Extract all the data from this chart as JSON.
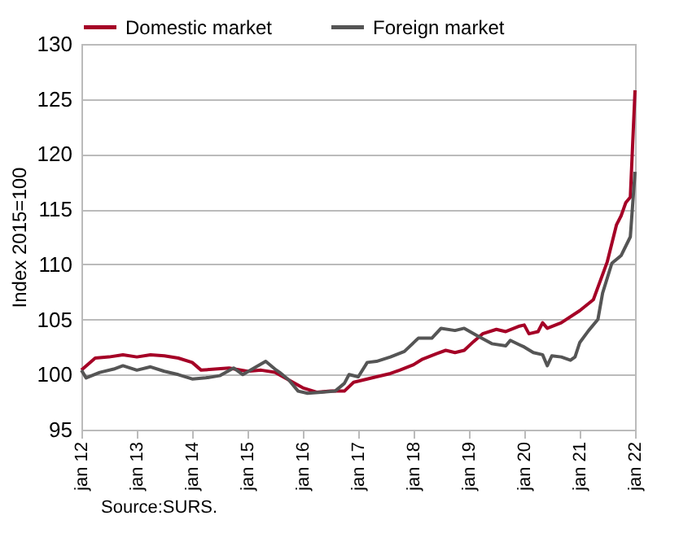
{
  "chart_data": {
    "type": "line",
    "ylabel": "Index 2015=100",
    "annotations": [
      "Source:SURS."
    ],
    "xlim": [
      "2012-01",
      "2022-01"
    ],
    "ylim": [
      95,
      130
    ],
    "yticks": [
      95,
      100,
      105,
      110,
      115,
      120,
      125,
      130
    ],
    "xticks": [
      {
        "value": "2012-01",
        "label": "jan 12"
      },
      {
        "value": "2013-01",
        "label": "jan 13"
      },
      {
        "value": "2014-01",
        "label": "jan 14"
      },
      {
        "value": "2015-01",
        "label": "jan 15"
      },
      {
        "value": "2016-01",
        "label": "jan 16"
      },
      {
        "value": "2017-01",
        "label": "jan 17"
      },
      {
        "value": "2018-01",
        "label": "jan 18"
      },
      {
        "value": "2019-01",
        "label": "jan 19"
      },
      {
        "value": "2020-01",
        "label": "jan 20"
      },
      {
        "value": "2021-01",
        "label": "jan 21"
      },
      {
        "value": "2022-01",
        "label": "jan 22"
      }
    ],
    "grid": "y",
    "legend": "top left",
    "series": [
      {
        "name": "Domestic market",
        "color": "#a50026",
        "x": [
          "2012-01",
          "2012-04",
          "2012-07",
          "2012-10",
          "2013-01",
          "2013-04",
          "2013-07",
          "2013-10",
          "2014-01",
          "2014-03",
          "2014-06",
          "2014-09",
          "2015-01",
          "2015-04",
          "2015-07",
          "2015-10",
          "2016-01",
          "2016-04",
          "2016-07",
          "2016-10",
          "2016-12",
          "2017-02",
          "2017-05",
          "2017-08",
          "2017-10",
          "2018-01",
          "2018-03",
          "2018-06",
          "2018-08",
          "2018-10",
          "2018-12",
          "2019-02",
          "2019-04",
          "2019-07",
          "2019-09",
          "2019-12",
          "2020-01",
          "2020-02",
          "2020-04",
          "2020-05",
          "2020-06",
          "2020-09",
          "2021-01",
          "2021-04",
          "2021-07",
          "2021-09",
          "2021-10",
          "2021-11",
          "2021-12",
          "2022-01"
        ],
        "values": [
          100.4,
          101.5,
          101.6,
          101.8,
          101.6,
          101.8,
          101.7,
          101.5,
          101.1,
          100.4,
          100.5,
          100.6,
          100.3,
          100.4,
          100.2,
          99.5,
          98.8,
          98.4,
          98.5,
          98.5,
          99.3,
          99.5,
          99.8,
          100.1,
          100.4,
          100.9,
          101.4,
          101.9,
          102.2,
          102.0,
          102.2,
          103.0,
          103.7,
          104.1,
          103.9,
          104.4,
          104.5,
          103.7,
          103.9,
          104.7,
          104.2,
          104.7,
          105.8,
          106.8,
          110.2,
          113.6,
          114.4,
          115.6,
          116.1,
          125.8
        ]
      },
      {
        "name": "Foreign market",
        "color": "#555555",
        "x": [
          "2012-01",
          "2012-02",
          "2012-05",
          "2012-08",
          "2012-10",
          "2013-01",
          "2013-04",
          "2013-07",
          "2013-10",
          "2014-01",
          "2014-04",
          "2014-07",
          "2014-10",
          "2014-12",
          "2015-05",
          "2015-07",
          "2015-08",
          "2015-10",
          "2015-12",
          "2016-02",
          "2016-05",
          "2016-08",
          "2016-10",
          "2016-11",
          "2017-01",
          "2017-03",
          "2017-05",
          "2017-08",
          "2017-11",
          "2018-02",
          "2018-05",
          "2018-07",
          "2018-10",
          "2018-12",
          "2019-03",
          "2019-06",
          "2019-09",
          "2019-10",
          "2019-12",
          "2020-01",
          "2020-03",
          "2020-05",
          "2020-06",
          "2020-07",
          "2020-09",
          "2020-11",
          "2020-12",
          "2021-01",
          "2021-03",
          "2021-05",
          "2021-06",
          "2021-08",
          "2021-10",
          "2021-12",
          "2022-01"
        ],
        "values": [
          100.4,
          99.7,
          100.2,
          100.5,
          100.8,
          100.4,
          100.7,
          100.3,
          100.0,
          99.6,
          99.7,
          99.9,
          100.6,
          100.0,
          101.2,
          100.5,
          100.2,
          99.5,
          98.5,
          98.3,
          98.4,
          98.5,
          99.2,
          100.0,
          99.8,
          101.1,
          101.2,
          101.6,
          102.1,
          103.3,
          103.3,
          104.2,
          104.0,
          104.2,
          103.5,
          102.8,
          102.6,
          103.1,
          102.7,
          102.5,
          102.0,
          101.8,
          100.8,
          101.7,
          101.6,
          101.3,
          101.6,
          102.9,
          104.0,
          105.0,
          107.4,
          110.1,
          110.8,
          112.5,
          118.4
        ]
      }
    ]
  }
}
